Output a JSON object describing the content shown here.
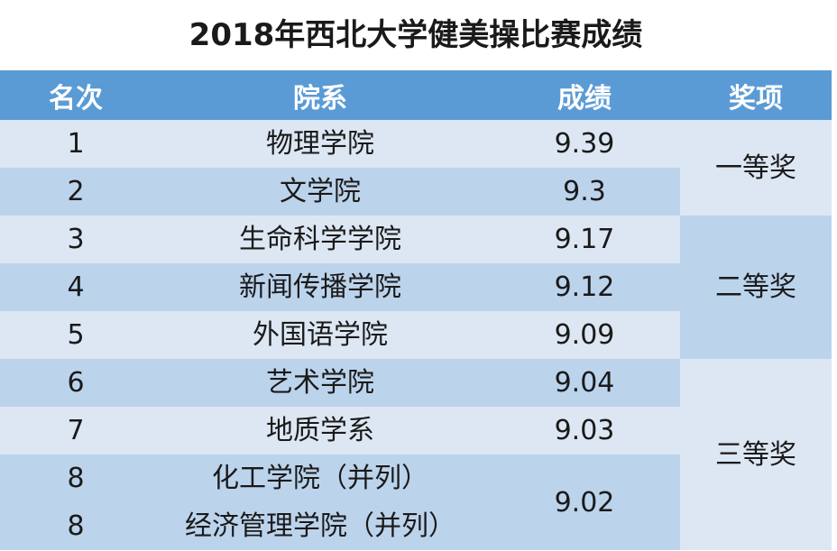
{
  "title": "2018年西北大学健美操比赛成绩",
  "headers": {
    "rank": "名次",
    "college": "院系",
    "score": "成绩",
    "award": "奖项"
  },
  "rows": [
    {
      "rank": "1",
      "college": "物理学院",
      "score": "9.39"
    },
    {
      "rank": "2",
      "college": "文学院",
      "score": "9.3"
    },
    {
      "rank": "3",
      "college": "生命科学学院",
      "score": "9.17"
    },
    {
      "rank": "4",
      "college": "新闻传播学院",
      "score": "9.12"
    },
    {
      "rank": "5",
      "college": "外国语学院",
      "score": "9.09"
    },
    {
      "rank": "6",
      "college": "艺术学院",
      "score": "9.04"
    },
    {
      "rank": "7",
      "college": "地质学系",
      "score": "9.03"
    },
    {
      "rank": "8",
      "college": "化工学院（并列）",
      "score": "9.02"
    },
    {
      "rank": "8",
      "college": "经济管理学院（并列）"
    }
  ],
  "awards": {
    "first": "一等奖",
    "second": "二等奖",
    "third": "三等奖"
  },
  "colors": {
    "header_bg": "#5b9bd5",
    "row_light": "#dde7f3",
    "row_dark": "#bcd3ec"
  }
}
